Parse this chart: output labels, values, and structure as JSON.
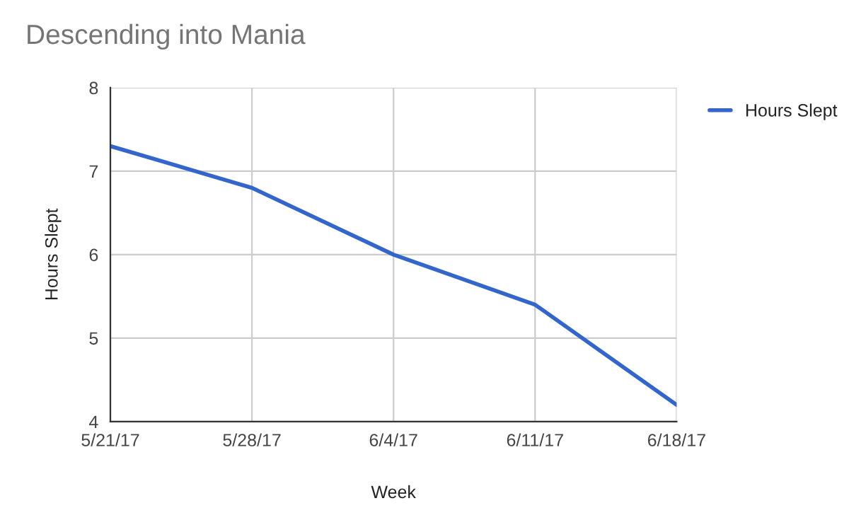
{
  "chart_data": {
    "type": "line",
    "title": "Descending into Mania",
    "xlabel": "Week",
    "ylabel": "Hours Slept",
    "categories": [
      "5/21/17",
      "5/28/17",
      "6/4/17",
      "6/11/17",
      "6/18/17"
    ],
    "series": [
      {
        "name": "Hours Slept",
        "color": "#3366cc",
        "values": [
          7.3,
          6.8,
          6.0,
          5.4,
          4.2
        ]
      }
    ],
    "ylim": [
      4,
      8
    ],
    "yticks": [
      4,
      5,
      6,
      7,
      8
    ],
    "grid": true,
    "legend": "right",
    "marker": "none",
    "line_style": "solid"
  }
}
